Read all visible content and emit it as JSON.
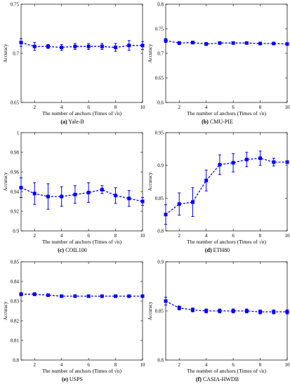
{
  "chart_data": [
    {
      "type": "line",
      "caption_tag": "(a)",
      "caption_text": "Yale-B",
      "xlabel": "The number of anchors (Times of √n)",
      "ylabel": "Accuracy",
      "xlim": [
        1,
        10
      ],
      "ylim": [
        0.65,
        0.75
      ],
      "xticks": [
        2,
        4,
        6,
        8,
        10
      ],
      "yticks": [
        0.65,
        0.7,
        0.75
      ],
      "color": "#0000ff",
      "x": [
        1,
        2,
        3,
        4,
        5,
        6,
        7,
        8,
        9,
        10
      ],
      "y": [
        0.711,
        0.707,
        0.707,
        0.706,
        0.707,
        0.707,
        0.707,
        0.706,
        0.708,
        0.708
      ],
      "err": [
        0.004,
        0.004,
        0.002,
        0.003,
        0.003,
        0.003,
        0.003,
        0.004,
        0.005,
        0.004
      ]
    },
    {
      "type": "line",
      "caption_tag": "(b)",
      "caption_text": "CMU-PIE",
      "xlabel": "The number of anchors (Times of √n)",
      "ylabel": "Accuracy",
      "xlim": [
        1,
        10
      ],
      "ylim": [
        0.6,
        0.8
      ],
      "xticks": [
        2,
        4,
        6,
        8,
        10
      ],
      "yticks": [
        0.6,
        0.65,
        0.7,
        0.75,
        0.8
      ],
      "color": "#0000ff",
      "x": [
        1,
        2,
        3,
        4,
        5,
        6,
        7,
        8,
        9,
        10
      ],
      "y": [
        0.726,
        0.721,
        0.722,
        0.719,
        0.721,
        0.721,
        0.721,
        0.72,
        0.72,
        0.719
      ],
      "err": [
        0.004,
        0.003,
        0.003,
        0.003,
        0.002,
        0.002,
        0.002,
        0.002,
        0.002,
        0.002
      ]
    },
    {
      "type": "line",
      "caption_tag": "(c)",
      "caption_text": "COIL100",
      "xlabel": "The number of anchors (Times of √n)",
      "ylabel": "Accuracy",
      "xlim": [
        1,
        10
      ],
      "ylim": [
        0.9,
        1.0
      ],
      "xticks": [
        2,
        4,
        6,
        8,
        10
      ],
      "yticks": [
        0.9,
        0.92,
        0.94,
        0.96,
        0.98,
        1
      ],
      "color": "#0000ff",
      "x": [
        1,
        2,
        3,
        4,
        5,
        6,
        7,
        8,
        9,
        10
      ],
      "y": [
        0.944,
        0.938,
        0.935,
        0.935,
        0.937,
        0.939,
        0.942,
        0.936,
        0.933,
        0.93
      ],
      "err": [
        0.01,
        0.011,
        0.013,
        0.01,
        0.009,
        0.01,
        0.004,
        0.008,
        0.008,
        0.004
      ]
    },
    {
      "type": "line",
      "caption_tag": "(d)",
      "caption_text": "ETH80",
      "xlabel": "The number of anchors (Times of √n)",
      "ylabel": "Accuracy",
      "xlim": [
        1,
        10
      ],
      "ylim": [
        0.8,
        0.95
      ],
      "xticks": [
        2,
        4,
        6,
        8,
        10
      ],
      "yticks": [
        0.8,
        0.85,
        0.9,
        0.95
      ],
      "color": "#0000ff",
      "x": [
        1,
        2,
        3,
        4,
        5,
        6,
        7,
        8,
        9,
        10
      ],
      "y": [
        0.825,
        0.841,
        0.844,
        0.877,
        0.901,
        0.904,
        0.909,
        0.911,
        0.905,
        0.905
      ],
      "err": [
        0.015,
        0.017,
        0.022,
        0.016,
        0.015,
        0.014,
        0.011,
        0.011,
        0.006,
        0.002
      ]
    },
    {
      "type": "line",
      "caption_tag": "(e)",
      "caption_text": "USPS",
      "xlabel": "The number of anchors (Times of √n)",
      "ylabel": "Accuracy",
      "xlim": [
        1,
        10
      ],
      "ylim": [
        0.8,
        0.85
      ],
      "xticks": [
        2,
        4,
        6,
        8,
        10
      ],
      "yticks": [
        0.8,
        0.81,
        0.82,
        0.83,
        0.84,
        0.85
      ],
      "color": "#0000ff",
      "x": [
        1,
        2,
        3,
        4,
        5,
        6,
        7,
        8,
        9,
        10
      ],
      "y": [
        0.8335,
        0.8335,
        0.833,
        0.8325,
        0.8325,
        0.8325,
        0.8325,
        0.8325,
        0.8325,
        0.8325
      ],
      "err": [
        0.0008,
        0.0008,
        0.0005,
        0.0004,
        0.0004,
        0.0004,
        0.0004,
        0.0004,
        0.0004,
        0.0004
      ]
    },
    {
      "type": "line",
      "caption_tag": "(f)",
      "caption_text": "CASIA-HWDB",
      "xlabel": "The number of anchors (Times of √n)",
      "ylabel": "Accuracy",
      "xlim": [
        1,
        10
      ],
      "ylim": [
        0.8,
        0.9
      ],
      "xticks": [
        2,
        4,
        6,
        8,
        10
      ],
      "yticks": [
        0.8,
        0.85,
        0.9
      ],
      "color": "#0000ff",
      "x": [
        1,
        2,
        3,
        4,
        5,
        6,
        7,
        8,
        9,
        10
      ],
      "y": [
        0.86,
        0.853,
        0.851,
        0.85,
        0.85,
        0.85,
        0.85,
        0.849,
        0.849,
        0.849
      ],
      "err": [
        0.004,
        0.002,
        0.002,
        0.002,
        0.002,
        0.002,
        0.002,
        0.002,
        0.002,
        0.002
      ]
    }
  ]
}
